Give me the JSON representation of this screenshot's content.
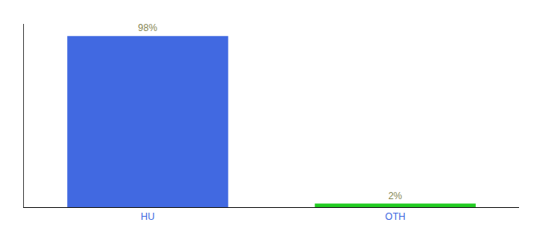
{
  "chart_data": {
    "type": "bar",
    "categories": [
      "HU",
      "OTH"
    ],
    "values": [
      98,
      2
    ],
    "value_labels": [
      "98%",
      "2%"
    ],
    "data_labels": true,
    "colors": [
      "#4169e1",
      "#22cc22"
    ],
    "ylim": [
      0,
      105
    ],
    "tick_labels": "x",
    "grid": false
  }
}
